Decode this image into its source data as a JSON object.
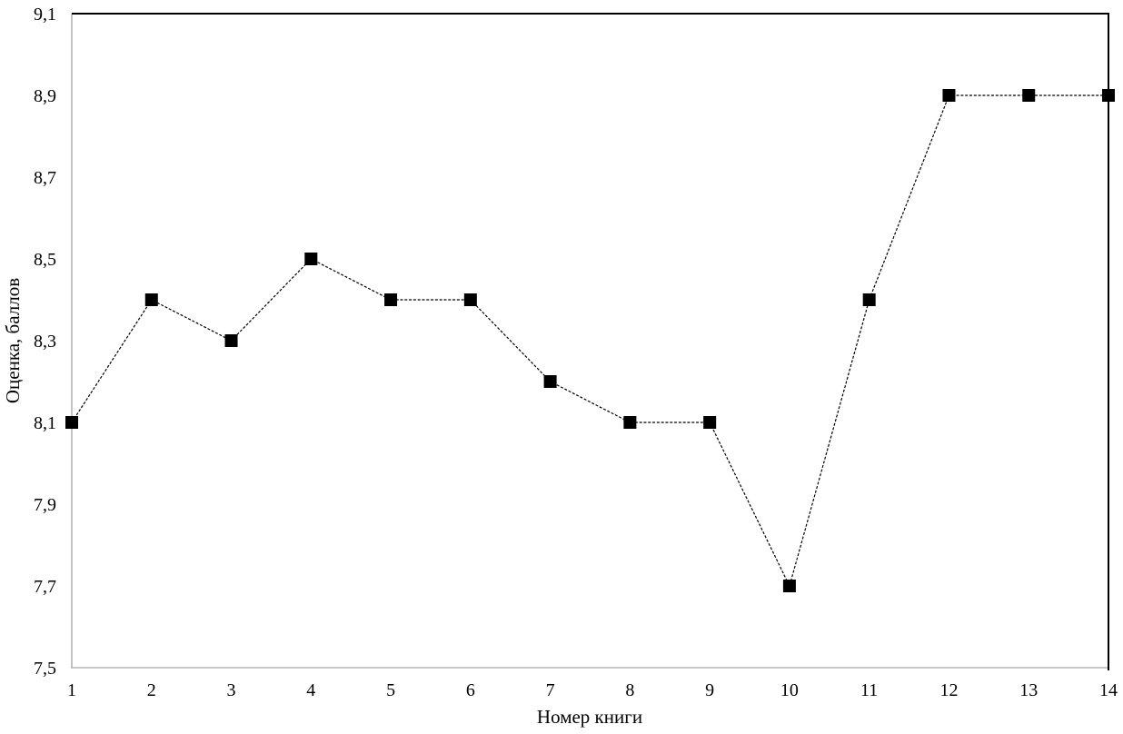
{
  "chart_data": {
    "type": "line",
    "title": "",
    "xlabel": "Номер книги",
    "ylabel": "Оценка, баллов",
    "x": [
      1,
      2,
      3,
      4,
      5,
      6,
      7,
      8,
      9,
      10,
      11,
      12,
      13,
      14
    ],
    "values": [
      8.1,
      8.4,
      8.3,
      8.5,
      8.4,
      8.4,
      8.2,
      8.1,
      8.1,
      7.7,
      8.4,
      8.9,
      8.9,
      8.9
    ],
    "xtick_labels": [
      "1",
      "2",
      "3",
      "4",
      "5",
      "6",
      "7",
      "8",
      "9",
      "10",
      "11",
      "12",
      "13",
      "14"
    ],
    "ytick_labels": [
      "7,5",
      "7,7",
      "7,9",
      "8,1",
      "8,3",
      "8,5",
      "8,7",
      "8,9",
      "9,1"
    ],
    "ylim": [
      7.5,
      9.1
    ],
    "ytick_step": 0.2,
    "xlim": [
      1,
      14
    ],
    "grid": false,
    "legend": "none",
    "line_style": "dashed",
    "marker": "filled-square",
    "colors": {
      "line": "#000000",
      "marker": "#000000",
      "axis": "#a6a6a6",
      "border": "#000000",
      "text": "#000000",
      "background": "#ffffff"
    }
  }
}
